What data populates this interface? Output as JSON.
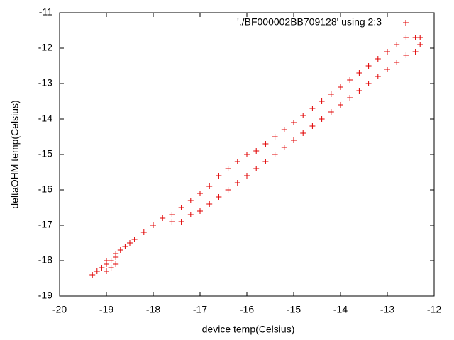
{
  "chart_data": {
    "type": "scatter",
    "xlabel": "device temp(Celsius)",
    "ylabel": "deltaOHM temp(Celsius)",
    "xlim": [
      -20,
      -12
    ],
    "ylim": [
      -19,
      -11
    ],
    "xticks": [
      -20,
      -19,
      -18,
      -17,
      -16,
      -15,
      -14,
      -13,
      -12
    ],
    "yticks": [
      -19,
      -18,
      -17,
      -16,
      -15,
      -14,
      -13,
      -12,
      -11
    ],
    "legend": "top-right",
    "series": [
      {
        "name": "'./BF000002BB709128' using 2:3",
        "color": "#e00000",
        "x": [
          -19.3,
          -19.2,
          -19.1,
          -19.0,
          -18.9,
          -18.8,
          -18.7,
          -18.6,
          -18.5,
          -18.4,
          -18.2,
          -18.0,
          -17.8,
          -17.6,
          -17.4,
          -17.2,
          -17.0,
          -16.8,
          -16.6,
          -16.4,
          -16.2,
          -16.0,
          -15.8,
          -15.6,
          -15.4,
          -15.2,
          -15.0,
          -14.8,
          -14.6,
          -14.4,
          -14.2,
          -14.0,
          -13.8,
          -13.6,
          -13.4,
          -13.2,
          -13.0,
          -12.8,
          -12.6,
          -12.4,
          -12.3,
          -12.3,
          -12.4,
          -12.6,
          -12.8,
          -13.0,
          -13.2,
          -13.4,
          -13.6,
          -13.8,
          -14.0,
          -14.2,
          -14.4,
          -14.6,
          -14.8,
          -15.0,
          -15.2,
          -15.4,
          -15.6,
          -15.8,
          -16.0,
          -16.2,
          -16.4,
          -16.6,
          -16.8,
          -17.0,
          -17.2,
          -17.4,
          -17.6,
          -19.0,
          -18.9,
          -18.8,
          -19.0,
          -18.8
        ],
        "values": [
          -18.4,
          -18.3,
          -18.2,
          -18.1,
          -18.0,
          -17.8,
          -17.7,
          -17.6,
          -17.5,
          -17.4,
          -17.2,
          -17.0,
          -16.8,
          -16.7,
          -16.5,
          -16.3,
          -16.1,
          -15.9,
          -15.6,
          -15.4,
          -15.2,
          -15.0,
          -14.9,
          -14.7,
          -14.5,
          -14.3,
          -14.1,
          -13.9,
          -13.7,
          -13.5,
          -13.3,
          -13.1,
          -12.9,
          -12.7,
          -12.5,
          -12.3,
          -12.1,
          -11.9,
          -11.7,
          -11.7,
          -11.7,
          -11.9,
          -12.1,
          -12.2,
          -12.4,
          -12.6,
          -12.8,
          -13.0,
          -13.2,
          -13.4,
          -13.6,
          -13.8,
          -14.0,
          -14.2,
          -14.4,
          -14.6,
          -14.8,
          -15.0,
          -15.2,
          -15.4,
          -15.6,
          -15.8,
          -16.0,
          -16.2,
          -16.4,
          -16.6,
          -16.7,
          -16.9,
          -16.9,
          -18.3,
          -18.2,
          -18.1,
          -18.0,
          -17.9
        ]
      }
    ]
  }
}
